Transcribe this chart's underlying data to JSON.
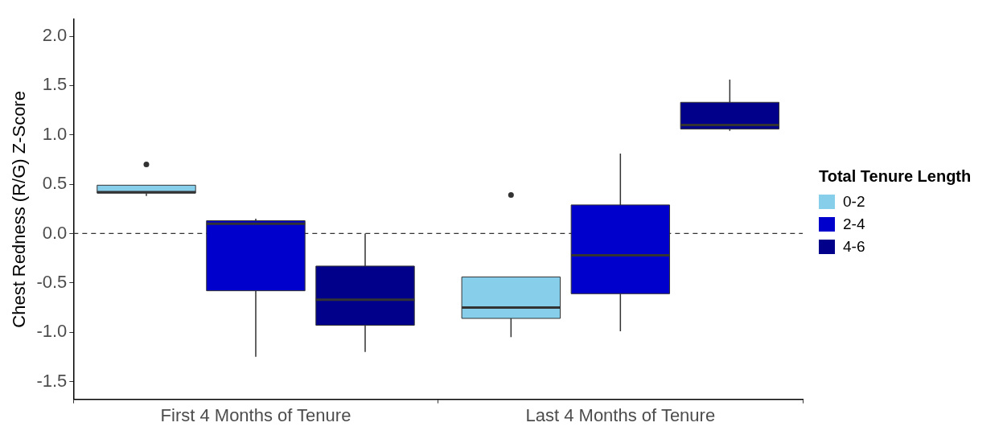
{
  "chart_data": {
    "type": "box",
    "ylabel": "Chest Redness (R/G) Z-Score",
    "legend_title": "Total Tenure Length",
    "categories": [
      "First 4 Months of Tenure",
      "Last 4 Months of Tenure"
    ],
    "series": [
      {
        "name": "0-2",
        "color": "#87ceeb",
        "boxes": [
          {
            "low": 0.38,
            "q1": 0.41,
            "median": 0.42,
            "q3": 0.49,
            "high": 0.49,
            "outliers": [
              0.7
            ]
          },
          {
            "low": -1.05,
            "q1": -0.86,
            "median": -0.75,
            "q3": -0.44,
            "high": -0.44,
            "outliers": [
              0.39
            ]
          }
        ]
      },
      {
        "name": "2-4",
        "color": "#0000cd",
        "boxes": [
          {
            "low": -1.25,
            "q1": -0.58,
            "median": 0.1,
            "q3": 0.13,
            "high": 0.15
          },
          {
            "low": -0.99,
            "q1": -0.61,
            "median": -0.22,
            "q3": 0.29,
            "high": 0.81
          }
        ]
      },
      {
        "name": "4-6",
        "color": "#00008b",
        "boxes": [
          {
            "low": -1.2,
            "q1": -0.93,
            "median": -0.67,
            "q3": -0.33,
            "high": 0.0
          },
          {
            "low": 1.04,
            "q1": 1.06,
            "median": 1.1,
            "q3": 1.33,
            "high": 1.56
          }
        ]
      }
    ],
    "ylim": [
      -1.68,
      2.17
    ],
    "yticks": [
      -1.5,
      {
        "value": -1,
        "label": "-1.0"
      },
      -0.5,
      {
        "value": 0,
        "label": "0.0"
      },
      0.5,
      {
        "value": 1,
        "label": "1.0"
      },
      1.5,
      {
        "value": 2,
        "label": "2.0"
      }
    ],
    "ref_lines": [
      {
        "axis": "y",
        "value": 0,
        "line_style": "dashed",
        "color": "#333333"
      }
    ],
    "legend": "right",
    "grid": false
  }
}
